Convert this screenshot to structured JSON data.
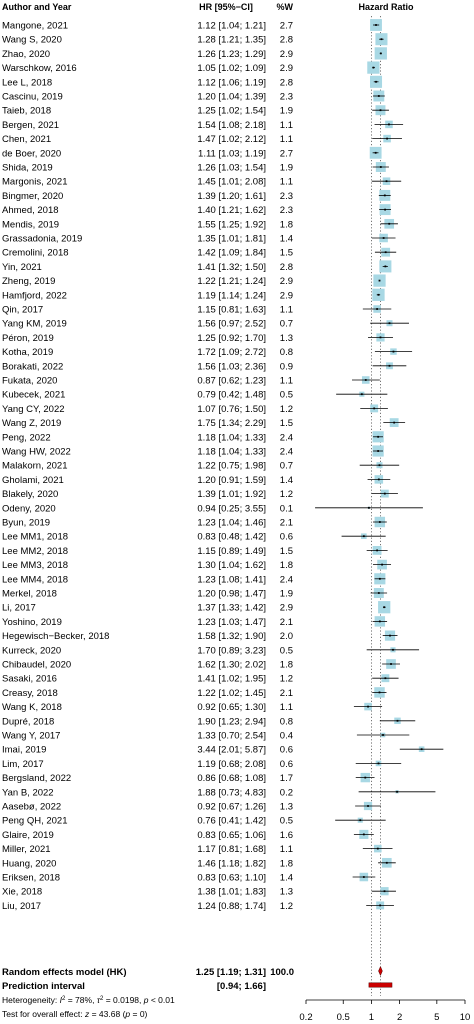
{
  "chart_data": {
    "type": "forest",
    "columns": {
      "study": "Author and Year",
      "hr_ci": "HR [95%−CI]",
      "weight": "%W",
      "plot": "Hazard Ratio"
    },
    "x_scale": "log",
    "xlim": [
      0.2,
      10
    ],
    "x_ticks": [
      "0.2",
      "0.5",
      "1",
      "2",
      "5",
      "10"
    ],
    "x_tick_values": [
      0.2,
      0.5,
      1,
      2,
      5,
      10
    ],
    "null_line": 1,
    "colors": {
      "square": "#a8d8e4",
      "diamond": "#cc0000",
      "prediction": "#cc0000",
      "line": "#000000",
      "dotted": "#555555"
    },
    "studies": [
      {
        "name": "Mangone, 2021",
        "hr": 1.12,
        "lo": 1.04,
        "hi": 1.21,
        "ci": "1.12 [1.04; 1.21]",
        "weight": 2.7,
        "w": "2.7"
      },
      {
        "name": "Wang S, 2020",
        "hr": 1.28,
        "lo": 1.21,
        "hi": 1.35,
        "ci": "1.28 [1.21; 1.35]",
        "weight": 2.8,
        "w": "2.8"
      },
      {
        "name": "Zhao, 2020",
        "hr": 1.26,
        "lo": 1.23,
        "hi": 1.29,
        "ci": "1.26 [1.23; 1.29]",
        "weight": 2.9,
        "w": "2.9"
      },
      {
        "name": "Warschkow, 2016",
        "hr": 1.05,
        "lo": 1.02,
        "hi": 1.09,
        "ci": "1.05 [1.02; 1.09]",
        "weight": 2.9,
        "w": "2.9"
      },
      {
        "name": "Lee L, 2018",
        "hr": 1.12,
        "lo": 1.06,
        "hi": 1.19,
        "ci": "1.12 [1.06; 1.19]",
        "weight": 2.8,
        "w": "2.8"
      },
      {
        "name": "Cascinu, 2019",
        "hr": 1.2,
        "lo": 1.04,
        "hi": 1.39,
        "ci": "1.20 [1.04; 1.39]",
        "weight": 2.3,
        "w": "2.3"
      },
      {
        "name": "Taieb, 2018",
        "hr": 1.25,
        "lo": 1.02,
        "hi": 1.54,
        "ci": "1.25 [1.02; 1.54]",
        "weight": 1.9,
        "w": "1.9"
      },
      {
        "name": "Bergen, 2021",
        "hr": 1.54,
        "lo": 1.08,
        "hi": 2.18,
        "ci": "1.54 [1.08; 2.18]",
        "weight": 1.1,
        "w": "1.1"
      },
      {
        "name": "Chen, 2021",
        "hr": 1.47,
        "lo": 1.02,
        "hi": 2.12,
        "ci": "1.47 [1.02; 2.12]",
        "weight": 1.1,
        "w": "1.1"
      },
      {
        "name": "de Boer, 2020",
        "hr": 1.11,
        "lo": 1.03,
        "hi": 1.19,
        "ci": "1.11 [1.03; 1.19]",
        "weight": 2.7,
        "w": "2.7"
      },
      {
        "name": "Shida, 2019",
        "hr": 1.26,
        "lo": 1.03,
        "hi": 1.54,
        "ci": "1.26 [1.03; 1.54]",
        "weight": 1.9,
        "w": "1.9"
      },
      {
        "name": "Margonis, 2021",
        "hr": 1.45,
        "lo": 1.01,
        "hi": 2.08,
        "ci": "1.45 [1.01; 2.08]",
        "weight": 1.1,
        "w": "1.1"
      },
      {
        "name": "Bingmer, 2020",
        "hr": 1.39,
        "lo": 1.2,
        "hi": 1.61,
        "ci": "1.39 [1.20; 1.61]",
        "weight": 2.3,
        "w": "2.3"
      },
      {
        "name": "Ahmed, 2018",
        "hr": 1.4,
        "lo": 1.21,
        "hi": 1.62,
        "ci": "1.40 [1.21; 1.62]",
        "weight": 2.3,
        "w": "2.3"
      },
      {
        "name": "Mendis, 2019",
        "hr": 1.55,
        "lo": 1.25,
        "hi": 1.92,
        "ci": "1.55 [1.25; 1.92]",
        "weight": 1.8,
        "w": "1.8"
      },
      {
        "name": "Grassadonia, 2019",
        "hr": 1.35,
        "lo": 1.01,
        "hi": 1.81,
        "ci": "1.35 [1.01; 1.81]",
        "weight": 1.4,
        "w": "1.4"
      },
      {
        "name": "Cremolini, 2018",
        "hr": 1.42,
        "lo": 1.09,
        "hi": 1.84,
        "ci": "1.42 [1.09; 1.84]",
        "weight": 1.5,
        "w": "1.5"
      },
      {
        "name": "Yin, 2021",
        "hr": 1.41,
        "lo": 1.32,
        "hi": 1.5,
        "ci": "1.41 [1.32; 1.50]",
        "weight": 2.8,
        "w": "2.8"
      },
      {
        "name": "Zheng, 2019",
        "hr": 1.22,
        "lo": 1.21,
        "hi": 1.24,
        "ci": "1.22 [1.21; 1.24]",
        "weight": 2.9,
        "w": "2.9"
      },
      {
        "name": "Hamfjord, 2022",
        "hr": 1.19,
        "lo": 1.14,
        "hi": 1.24,
        "ci": "1.19 [1.14; 1.24]",
        "weight": 2.9,
        "w": "2.9"
      },
      {
        "name": "Qin, 2017",
        "hr": 1.15,
        "lo": 0.81,
        "hi": 1.63,
        "ci": "1.15 [0.81; 1.63]",
        "weight": 1.1,
        "w": "1.1"
      },
      {
        "name": "Yang KM, 2019",
        "hr": 1.56,
        "lo": 0.97,
        "hi": 2.52,
        "ci": "1.56 [0.97; 2.52]",
        "weight": 0.7,
        "w": "0.7"
      },
      {
        "name": "Péron, 2019",
        "hr": 1.25,
        "lo": 0.92,
        "hi": 1.7,
        "ci": "1.25 [0.92; 1.70]",
        "weight": 1.3,
        "w": "1.3"
      },
      {
        "name": "Kotha, 2019",
        "hr": 1.72,
        "lo": 1.09,
        "hi": 2.72,
        "ci": "1.72 [1.09; 2.72]",
        "weight": 0.8,
        "w": "0.8"
      },
      {
        "name": "Borakati, 2022",
        "hr": 1.56,
        "lo": 1.03,
        "hi": 2.36,
        "ci": "1.56 [1.03; 2.36]",
        "weight": 0.9,
        "w": "0.9"
      },
      {
        "name": "Fukata, 2020",
        "hr": 0.87,
        "lo": 0.62,
        "hi": 1.23,
        "ci": "0.87 [0.62; 1.23]",
        "weight": 1.1,
        "w": "1.1"
      },
      {
        "name": "Kubecek, 2021",
        "hr": 0.79,
        "lo": 0.42,
        "hi": 1.48,
        "ci": "0.79 [0.42; 1.48]",
        "weight": 0.5,
        "w": "0.5"
      },
      {
        "name": "Yang CY, 2022",
        "hr": 1.07,
        "lo": 0.76,
        "hi": 1.5,
        "ci": "1.07 [0.76; 1.50]",
        "weight": 1.2,
        "w": "1.2"
      },
      {
        "name": "Wang Z, 2019",
        "hr": 1.75,
        "lo": 1.34,
        "hi": 2.29,
        "ci": "1.75 [1.34; 2.29]",
        "weight": 1.5,
        "w": "1.5"
      },
      {
        "name": "Peng, 2022",
        "hr": 1.18,
        "lo": 1.04,
        "hi": 1.33,
        "ci": "1.18 [1.04; 1.33]",
        "weight": 2.4,
        "w": "2.4"
      },
      {
        "name": "Wang HW, 2022",
        "hr": 1.18,
        "lo": 1.04,
        "hi": 1.33,
        "ci": "1.18 [1.04; 1.33]",
        "weight": 2.4,
        "w": "2.4"
      },
      {
        "name": "Malakorn, 2021",
        "hr": 1.22,
        "lo": 0.75,
        "hi": 1.98,
        "ci": "1.22 [0.75; 1.98]",
        "weight": 0.7,
        "w": "0.7"
      },
      {
        "name": "Gholami, 2021",
        "hr": 1.2,
        "lo": 0.91,
        "hi": 1.59,
        "ci": "1.20 [0.91; 1.59]",
        "weight": 1.4,
        "w": "1.4"
      },
      {
        "name": "Blakely, 2020",
        "hr": 1.39,
        "lo": 1.01,
        "hi": 1.92,
        "ci": "1.39 [1.01; 1.92]",
        "weight": 1.2,
        "w": "1.2"
      },
      {
        "name": "Odeny, 2020",
        "hr": 0.94,
        "lo": 0.25,
        "hi": 3.55,
        "ci": "0.94 [0.25; 3.55]",
        "weight": 0.1,
        "w": "0.1"
      },
      {
        "name": "Byun, 2019",
        "hr": 1.23,
        "lo": 1.04,
        "hi": 1.46,
        "ci": "1.23 [1.04; 1.46]",
        "weight": 2.1,
        "w": "2.1"
      },
      {
        "name": "Lee MM1, 2018",
        "hr": 0.83,
        "lo": 0.48,
        "hi": 1.42,
        "ci": "0.83 [0.48; 1.42]",
        "weight": 0.6,
        "w": "0.6"
      },
      {
        "name": "Lee MM2, 2018",
        "hr": 1.15,
        "lo": 0.89,
        "hi": 1.49,
        "ci": "1.15 [0.89; 1.49]",
        "weight": 1.5,
        "w": "1.5"
      },
      {
        "name": "Lee MM3, 2018",
        "hr": 1.3,
        "lo": 1.04,
        "hi": 1.62,
        "ci": "1.30 [1.04; 1.62]",
        "weight": 1.8,
        "w": "1.8"
      },
      {
        "name": "Lee MM4, 2018",
        "hr": 1.23,
        "lo": 1.08,
        "hi": 1.41,
        "ci": "1.23 [1.08; 1.41]",
        "weight": 2.4,
        "w": "2.4"
      },
      {
        "name": "Merkel, 2018",
        "hr": 1.2,
        "lo": 0.98,
        "hi": 1.47,
        "ci": "1.20 [0.98; 1.47]",
        "weight": 1.9,
        "w": "1.9"
      },
      {
        "name": "Li, 2017",
        "hr": 1.37,
        "lo": 1.33,
        "hi": 1.42,
        "ci": "1.37 [1.33; 1.42]",
        "weight": 2.9,
        "w": "2.9"
      },
      {
        "name": "Yoshino, 2019",
        "hr": 1.23,
        "lo": 1.03,
        "hi": 1.47,
        "ci": "1.23 [1.03; 1.47]",
        "weight": 2.1,
        "w": "2.1"
      },
      {
        "name": "Hegewisch−Becker, 2018",
        "hr": 1.58,
        "lo": 1.32,
        "hi": 1.9,
        "ci": "1.58 [1.32; 1.90]",
        "weight": 2.0,
        "w": "2.0"
      },
      {
        "name": "Kurreck, 2020",
        "hr": 1.7,
        "lo": 0.89,
        "hi": 3.23,
        "ci": "1.70 [0.89; 3.23]",
        "weight": 0.5,
        "w": "0.5"
      },
      {
        "name": "Chibaudel, 2020",
        "hr": 1.62,
        "lo": 1.3,
        "hi": 2.02,
        "ci": "1.62 [1.30; 2.02]",
        "weight": 1.8,
        "w": "1.8"
      },
      {
        "name": "Sasaki, 2016",
        "hr": 1.41,
        "lo": 1.02,
        "hi": 1.95,
        "ci": "1.41 [1.02; 1.95]",
        "weight": 1.2,
        "w": "1.2"
      },
      {
        "name": "Creasy, 2018",
        "hr": 1.22,
        "lo": 1.02,
        "hi": 1.45,
        "ci": "1.22 [1.02; 1.45]",
        "weight": 2.1,
        "w": "2.1"
      },
      {
        "name": "Wang K, 2018",
        "hr": 0.92,
        "lo": 0.65,
        "hi": 1.3,
        "ci": "0.92 [0.65; 1.30]",
        "weight": 1.1,
        "w": "1.1"
      },
      {
        "name": "Dupré, 2018",
        "hr": 1.9,
        "lo": 1.23,
        "hi": 2.94,
        "ci": "1.90 [1.23; 2.94]",
        "weight": 0.8,
        "w": "0.8"
      },
      {
        "name": "Wang Y, 2017",
        "hr": 1.33,
        "lo": 0.7,
        "hi": 2.54,
        "ci": "1.33 [0.70; 2.54]",
        "weight": 0.4,
        "w": "0.4"
      },
      {
        "name": "Imai, 2019",
        "hr": 3.44,
        "lo": 2.01,
        "hi": 5.87,
        "ci": "3.44 [2.01; 5.87]",
        "weight": 0.6,
        "w": "0.6"
      },
      {
        "name": "Lim, 2017",
        "hr": 1.19,
        "lo": 0.68,
        "hi": 2.08,
        "ci": "1.19 [0.68; 2.08]",
        "weight": 0.6,
        "w": "0.6"
      },
      {
        "name": "Bergsland, 2022",
        "hr": 0.86,
        "lo": 0.68,
        "hi": 1.08,
        "ci": "0.86 [0.68; 1.08]",
        "weight": 1.7,
        "w": "1.7"
      },
      {
        "name": "Yan B, 2022",
        "hr": 1.88,
        "lo": 0.73,
        "hi": 4.83,
        "ci": "1.88 [0.73; 4.83]",
        "weight": 0.2,
        "w": "0.2"
      },
      {
        "name": "Aasebø, 2022",
        "hr": 0.92,
        "lo": 0.67,
        "hi": 1.26,
        "ci": "0.92 [0.67; 1.26]",
        "weight": 1.3,
        "w": "1.3"
      },
      {
        "name": "Peng QH, 2021",
        "hr": 0.76,
        "lo": 0.41,
        "hi": 1.42,
        "ci": "0.76 [0.41; 1.42]",
        "weight": 0.5,
        "w": "0.5"
      },
      {
        "name": "Glaire, 2019",
        "hr": 0.83,
        "lo": 0.65,
        "hi": 1.06,
        "ci": "0.83 [0.65; 1.06]",
        "weight": 1.6,
        "w": "1.6"
      },
      {
        "name": "Miller, 2021",
        "hr": 1.17,
        "lo": 0.81,
        "hi": 1.68,
        "ci": "1.17 [0.81; 1.68]",
        "weight": 1.1,
        "w": "1.1"
      },
      {
        "name": "Huang, 2020",
        "hr": 1.46,
        "lo": 1.18,
        "hi": 1.82,
        "ci": "1.46 [1.18; 1.82]",
        "weight": 1.8,
        "w": "1.8"
      },
      {
        "name": "Eriksen, 2018",
        "hr": 0.83,
        "lo": 0.63,
        "hi": 1.1,
        "ci": "0.83 [0.63; 1.10]",
        "weight": 1.4,
        "w": "1.4"
      },
      {
        "name": "Xie, 2018",
        "hr": 1.38,
        "lo": 1.01,
        "hi": 1.83,
        "ci": "1.38 [1.01; 1.83]",
        "weight": 1.3,
        "w": "1.3"
      },
      {
        "name": "Liu, 2017",
        "hr": 1.24,
        "lo": 0.88,
        "hi": 1.74,
        "ci": "1.24 [0.88; 1.74]",
        "weight": 1.2,
        "w": "1.2"
      }
    ],
    "summary": {
      "label": "Random effects model (HK)",
      "hr": 1.25,
      "lo": 1.19,
      "hi": 1.31,
      "ci": "1.25 [1.19; 1.31]",
      "weight": "100.0"
    },
    "prediction": {
      "label": "Prediction interval",
      "lo": 0.94,
      "hi": 1.66,
      "ci": "[0.94; 1.66]"
    },
    "heterogeneity": {
      "prefix": "Heterogeneity: ",
      "i2_sym": "I",
      "i2_val": " = 78%, ",
      "tau2_sym": "τ",
      "tau2_val": " = 0.0198, ",
      "p_sym": "p",
      "p_val": " < 0.01"
    },
    "overall": {
      "prefix": "Test for overall effect: ",
      "z_sym": "z",
      "z_val": " = 43.68 (",
      "p_sym": "p",
      "p_val": " = 0)"
    }
  }
}
